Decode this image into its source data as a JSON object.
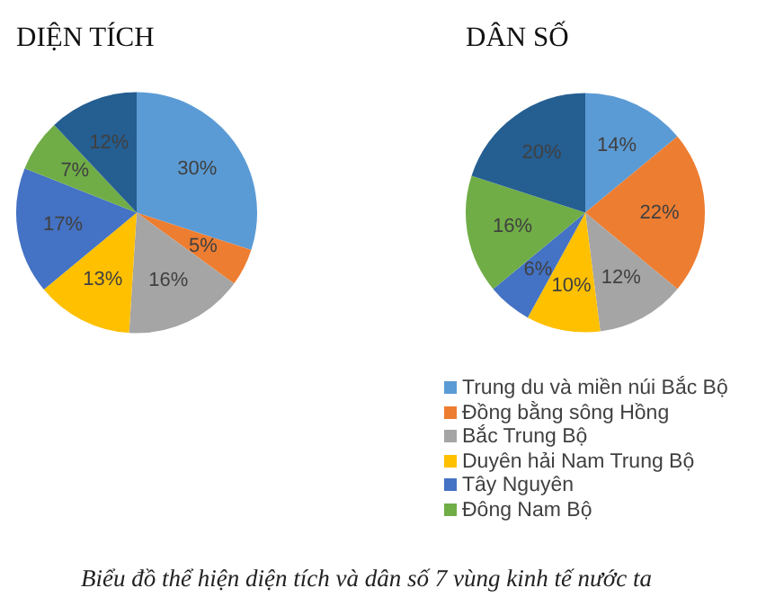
{
  "chart_data": [
    {
      "type": "pie",
      "title": "DIỆN TÍCH",
      "categories": [
        null,
        null,
        null,
        null,
        null,
        null,
        null
      ],
      "values": [
        30,
        5,
        16,
        13,
        17,
        7,
        12
      ],
      "value_labels": [
        "30%",
        "5%",
        "16%",
        "13%",
        "17%",
        "7%",
        "12%"
      ],
      "colors": [
        "#5b9bd5",
        "#ed7d31",
        "#a5a5a5",
        "#ffc000",
        "#4472c4",
        "#70ad47",
        "#255e91"
      ],
      "legend": false
    },
    {
      "type": "pie",
      "title": "DÂN SỐ",
      "categories": [
        "Trung du và miền núi Bắc Bộ",
        "Đồng bằng sông Hồng",
        "Bắc Trung Bộ",
        "Duyên hải Nam Trung Bộ",
        "Tây Nguyên",
        "Đông Nam Bộ",
        null
      ],
      "values": [
        14,
        22,
        12,
        10,
        6,
        16,
        20
      ],
      "value_labels": [
        "14%",
        "22%",
        "12%",
        "10%",
        "6%",
        "16%",
        "20%"
      ],
      "colors": [
        "#5b9bd5",
        "#ed7d31",
        "#a5a5a5",
        "#ffc000",
        "#4472c4",
        "#70ad47",
        "#255e91"
      ],
      "legend": "bottom",
      "annotations": [
        "Biểu đồ thể hiện diện tích và dân số 7 vùng kinh tế nước ta"
      ]
    }
  ]
}
